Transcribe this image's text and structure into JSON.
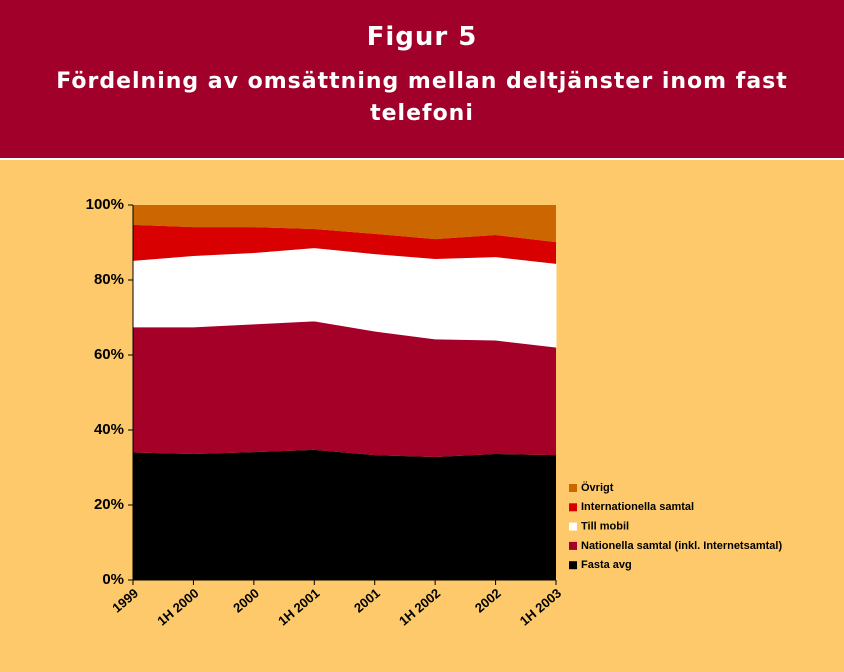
{
  "chart_data": {
    "type": "stacked_area",
    "title": "Figur 5",
    "subtitle": "Fördelning av omsättning mellan deltjänster inom fast telefoni",
    "categories": [
      "1999",
      "1H 2000",
      "2000",
      "1H 2001",
      "2001",
      "1H 2002",
      "2002",
      "1H 2003"
    ],
    "series": [
      {
        "name": "Fasta avg",
        "color": "#000000",
        "values": [
          34,
          33.6,
          34.1,
          34.7,
          33.3,
          32.8,
          33.6,
          33.3
        ]
      },
      {
        "name": "Nationella samtal (inkl. Internetsamtal)",
        "color": "#a50028",
        "values": [
          33.5,
          33.9,
          34.2,
          34.4,
          33.1,
          31.5,
          30.4,
          28.8
        ]
      },
      {
        "name": "Till mobil",
        "color": "#ffffff",
        "values": [
          17.6,
          18.9,
          18.9,
          19.4,
          20.5,
          21.3,
          22.1,
          22.2
        ]
      },
      {
        "name": "Internationella samtal",
        "color": "#d80000",
        "values": [
          9.6,
          7.7,
          6.9,
          5.1,
          5.4,
          5.3,
          5.9,
          5.8
        ]
      },
      {
        "name": "Övrigt",
        "color": "#cc6600",
        "values": [
          5.3,
          5.9,
          5.9,
          6.4,
          7.7,
          9.1,
          8,
          9.9
        ]
      }
    ],
    "ylim": [
      0,
      100
    ],
    "yticks": [
      {
        "value": 0,
        "label": "0%"
      },
      {
        "value": 20,
        "label": "20%"
      },
      {
        "value": 40,
        "label": "40%"
      },
      {
        "value": 60,
        "label": "60%"
      },
      {
        "value": 80,
        "label": "80%"
      },
      {
        "value": 100,
        "label": "100%"
      }
    ],
    "legend": "right"
  }
}
